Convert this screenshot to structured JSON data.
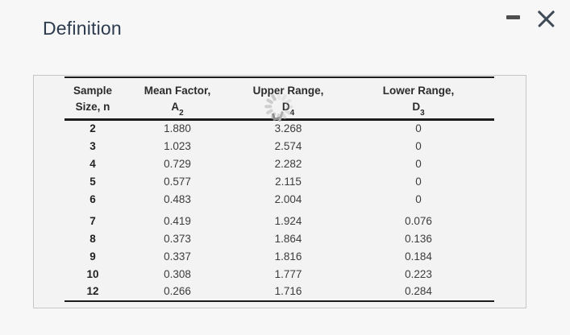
{
  "window": {
    "title": "Definition"
  },
  "table": {
    "headers": [
      {
        "top": "Sample",
        "bottom": "Size, n",
        "sub": ""
      },
      {
        "top": "Mean Factor,",
        "bottom": "A",
        "sub": "2"
      },
      {
        "top": "Upper Range,",
        "bottom": "D",
        "sub": "4"
      },
      {
        "top": "Lower Range,",
        "bottom": "D",
        "sub": "3"
      }
    ],
    "rows": [
      [
        "2",
        "1.880",
        "3.268",
        "0"
      ],
      [
        "3",
        "1.023",
        "2.574",
        "0"
      ],
      [
        "4",
        "0.729",
        "2.282",
        "0"
      ],
      [
        "5",
        "0.577",
        "2.115",
        "0"
      ],
      [
        "6",
        "0.483",
        "2.004",
        "0"
      ],
      [
        "7",
        "0.419",
        "1.924",
        "0.076"
      ],
      [
        "8",
        "0.373",
        "1.864",
        "0.136"
      ],
      [
        "9",
        "0.337",
        "1.816",
        "0.184"
      ],
      [
        "10",
        "0.308",
        "1.777",
        "0.223"
      ],
      [
        "12",
        "0.266",
        "1.716",
        "0.284"
      ]
    ]
  },
  "colors": {
    "title_text": "#2d3b4e",
    "panel_background": "#f3f3f3",
    "panel_border": "#c6c6c6",
    "table_rule": "#1c1c1c",
    "page_background": "#f7f7f7"
  }
}
